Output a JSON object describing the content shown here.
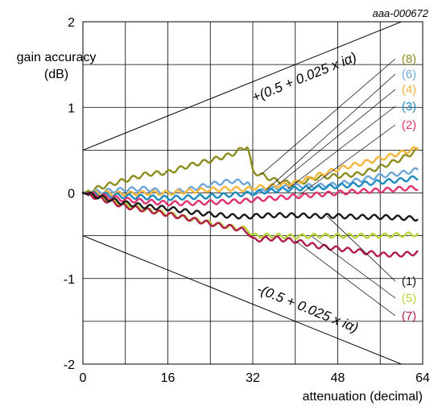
{
  "figure_id": "aaa-000672",
  "chart_data": {
    "type": "line",
    "xlabel": "attenuation (decimal)",
    "ylabel": "gain accuracy",
    "ylabel_unit": "(dB)",
    "xlim": [
      0,
      64
    ],
    "ylim": [
      -2,
      2
    ],
    "x_ticks": [
      0,
      16,
      32,
      48,
      64
    ],
    "x_tick_labels": [
      "0",
      "16",
      "32",
      "48",
      "64"
    ],
    "y_ticks": [
      -2,
      -1,
      0,
      1,
      2
    ],
    "y_tick_labels": [
      "-2",
      "-1",
      "0",
      "1",
      "2"
    ],
    "grid": true,
    "bounds": [
      {
        "label": "+(0.5 + 0.025 x iα)",
        "x": [
          0,
          64
        ],
        "y": [
          0.5,
          2.1
        ]
      },
      {
        "label": "-(0.5 + 0.025 x iα)",
        "x": [
          0,
          64
        ],
        "y": [
          -0.5,
          -2.1
        ]
      }
    ],
    "series": [
      {
        "name": "(8)",
        "color": "#8b8d1c",
        "x": [
          0,
          4,
          8,
          12,
          16,
          20,
          24,
          28,
          31,
          32,
          36,
          40,
          44,
          48,
          52,
          56,
          60,
          63
        ],
        "y": [
          0.0,
          0.08,
          0.15,
          0.22,
          0.24,
          0.32,
          0.38,
          0.45,
          0.55,
          0.25,
          0.15,
          0.1,
          0.18,
          0.2,
          0.22,
          0.3,
          0.4,
          0.5
        ]
      },
      {
        "name": "(6)",
        "color": "#6fa6d8",
        "x": [
          0,
          4,
          8,
          12,
          16,
          20,
          24,
          28,
          31,
          32,
          36,
          40,
          44,
          48,
          52,
          56,
          60,
          63
        ],
        "y": [
          0.0,
          0.02,
          0.04,
          0.05,
          0.0,
          0.04,
          0.1,
          0.14,
          0.12,
          0.0,
          0.05,
          0.08,
          0.08,
          0.1,
          0.15,
          0.2,
          0.23,
          0.27
        ]
      },
      {
        "name": "(4)",
        "color": "#f5b53a",
        "x": [
          0,
          4,
          8,
          12,
          16,
          20,
          24,
          28,
          31,
          32,
          36,
          40,
          44,
          48,
          52,
          56,
          60,
          63
        ],
        "y": [
          0.0,
          0.0,
          -0.01,
          0.0,
          0.0,
          0.02,
          0.04,
          0.05,
          0.04,
          0.06,
          0.08,
          0.12,
          0.2,
          0.28,
          0.34,
          0.4,
          0.47,
          0.52
        ]
      },
      {
        "name": "(3)",
        "color": "#1d8bbd",
        "x": [
          0,
          4,
          8,
          12,
          16,
          20,
          24,
          28,
          31,
          32,
          36,
          40,
          44,
          48,
          52,
          56,
          60,
          63
        ],
        "y": [
          0.0,
          -0.02,
          -0.04,
          -0.05,
          -0.06,
          -0.05,
          -0.04,
          -0.02,
          -0.01,
          0.0,
          0.03,
          0.05,
          0.06,
          0.08,
          0.1,
          0.13,
          0.15,
          0.18
        ]
      },
      {
        "name": "(2)",
        "color": "#e03170",
        "x": [
          0,
          4,
          8,
          12,
          16,
          20,
          24,
          28,
          31,
          32,
          36,
          40,
          44,
          48,
          52,
          56,
          60,
          63
        ],
        "y": [
          0.0,
          -0.04,
          -0.08,
          -0.1,
          -0.12,
          -0.12,
          -0.11,
          -0.1,
          -0.09,
          -0.08,
          -0.06,
          -0.04,
          -0.02,
          0.0,
          0.02,
          0.03,
          0.05,
          0.06
        ]
      },
      {
        "name": "(1)",
        "color": "#1a1a1a",
        "x": [
          0,
          4,
          8,
          12,
          16,
          20,
          24,
          28,
          31,
          32,
          36,
          40,
          44,
          48,
          52,
          56,
          60,
          63
        ],
        "y": [
          0.0,
          -0.06,
          -0.12,
          -0.16,
          -0.18,
          -0.22,
          -0.25,
          -0.27,
          -0.28,
          -0.27,
          -0.26,
          -0.26,
          -0.27,
          -0.27,
          -0.28,
          -0.28,
          -0.29,
          -0.3
        ]
      },
      {
        "name": "(5)",
        "color": "#b9d43a",
        "x": [
          0,
          4,
          8,
          12,
          16,
          20,
          24,
          28,
          31,
          32,
          36,
          40,
          44,
          48,
          52,
          56,
          60,
          63
        ],
        "y": [
          0.0,
          -0.07,
          -0.14,
          -0.2,
          -0.24,
          -0.3,
          -0.35,
          -0.4,
          -0.42,
          -0.5,
          -0.5,
          -0.51,
          -0.5,
          -0.5,
          -0.5,
          -0.5,
          -0.49,
          -0.48
        ]
      },
      {
        "name": "(7)",
        "color": "#b21d4d",
        "x": [
          0,
          4,
          8,
          12,
          16,
          20,
          24,
          28,
          31,
          32,
          36,
          40,
          44,
          48,
          52,
          56,
          60,
          63
        ],
        "y": [
          0.0,
          -0.08,
          -0.16,
          -0.2,
          -0.25,
          -0.3,
          -0.36,
          -0.4,
          -0.45,
          -0.55,
          -0.53,
          -0.56,
          -0.62,
          -0.65,
          -0.68,
          -0.72,
          -0.72,
          -0.7
        ]
      }
    ]
  }
}
